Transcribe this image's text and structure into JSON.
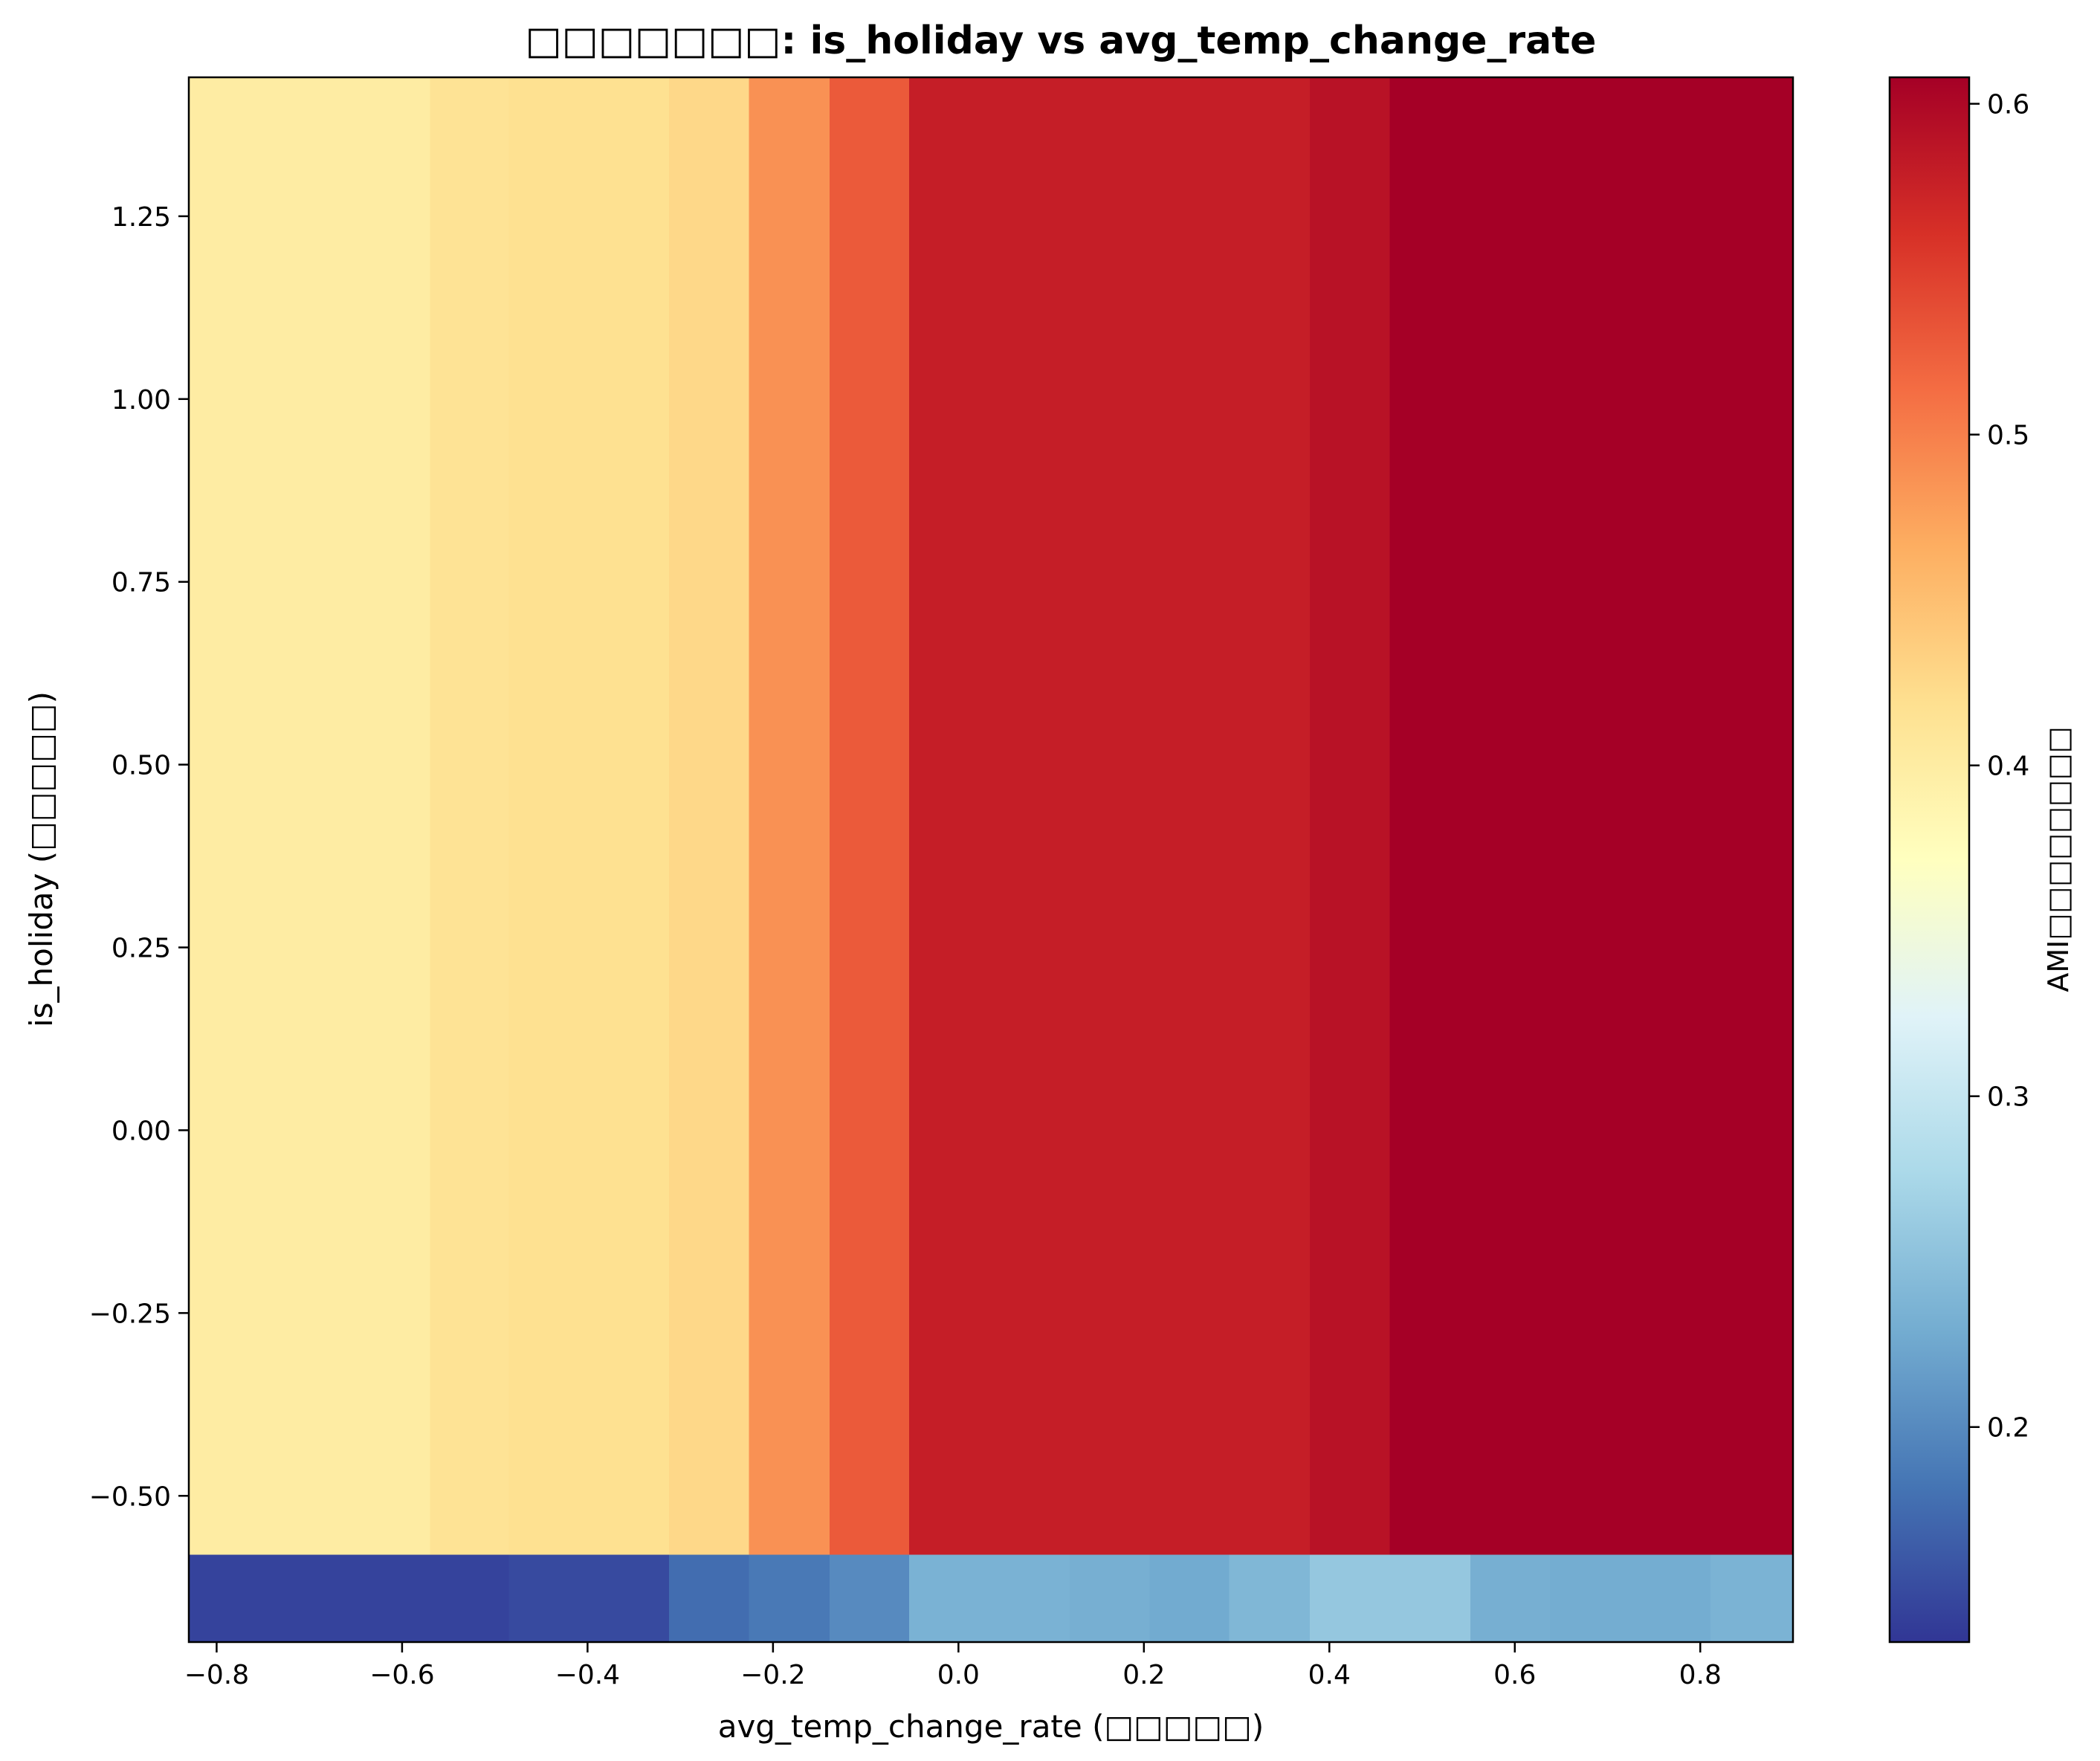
{
  "chart_data": {
    "type": "heatmap",
    "title": "□□□□□□□: is_holiday vs avg_temp_change_rate",
    "xlabel": "avg_temp_change_rate (□□□□□)",
    "ylabel": "is_holiday (□□□□□)",
    "colorbar_label": "AMI□□□□□□□□",
    "colormap": "RdYlBu_r",
    "xlim": [
      -0.83,
      0.9
    ],
    "ylim": [
      -0.7,
      1.44
    ],
    "x_ticks": [
      -0.8,
      -0.6,
      -0.4,
      -0.2,
      0.0,
      0.2,
      0.4,
      0.6,
      0.8
    ],
    "x_tick_labels": [
      "−0.8",
      "−0.6",
      "−0.4",
      "−0.2",
      "0.0",
      "0.2",
      "0.4",
      "0.6",
      "0.8"
    ],
    "y_ticks": [
      -0.5,
      -0.25,
      0.0,
      0.25,
      0.5,
      0.75,
      1.0,
      1.25
    ],
    "y_tick_labels": [
      "−0.50",
      "−0.25",
      "0.00",
      "0.25",
      "0.50",
      "0.75",
      "1.00",
      "1.25"
    ],
    "colorbar_range": [
      0.135,
      0.608
    ],
    "colorbar_ticks": [
      0.2,
      0.3,
      0.4,
      0.5,
      0.6
    ],
    "colorbar_tick_labels": [
      "0.2",
      "0.3",
      "0.4",
      "0.5",
      "0.6"
    ],
    "x_edges": [
      -0.83,
      -0.57,
      -0.485,
      -0.312,
      -0.226,
      -0.139,
      -0.053,
      0.033,
      0.12,
      0.206,
      0.292,
      0.379,
      0.465,
      0.552,
      0.638,
      0.724,
      0.811,
      0.9
    ],
    "y_edges": [
      -0.7,
      -0.58,
      1.44
    ],
    "values": [
      [
        0.145,
        0.145,
        0.15,
        0.176,
        0.186,
        0.2,
        0.235,
        0.235,
        0.232,
        0.228,
        0.24,
        0.258,
        0.258,
        0.232,
        0.23,
        0.23,
        0.236
      ],
      [
        0.4,
        0.414,
        0.418,
        0.426,
        0.487,
        0.528,
        0.578,
        0.578,
        0.578,
        0.578,
        0.578,
        0.59,
        0.608,
        0.608,
        0.608,
        0.608,
        0.608
      ]
    ],
    "grid": false
  }
}
